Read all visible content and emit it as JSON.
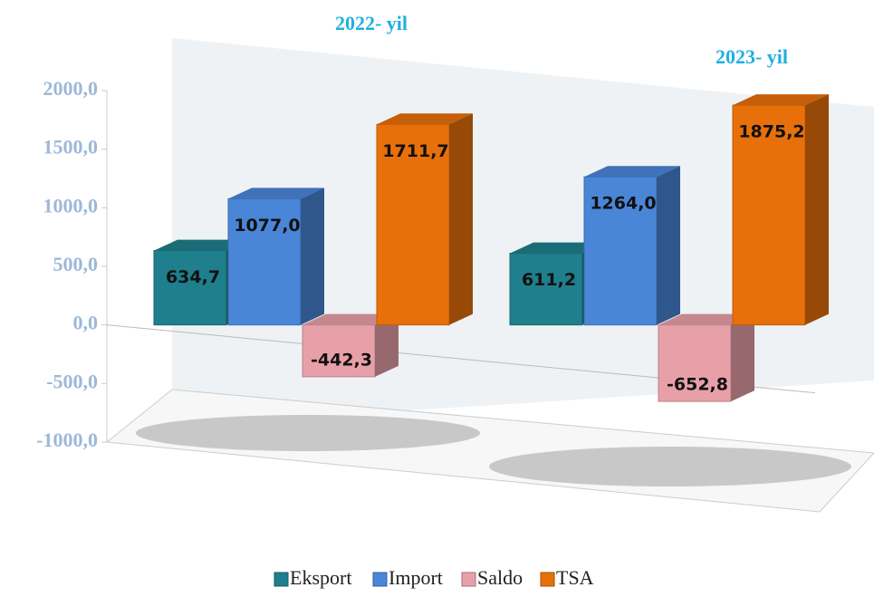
{
  "chart_data": {
    "type": "bar3d",
    "categories": [
      "2022- yil",
      "2023- yil"
    ],
    "series": [
      {
        "name": "Eksport",
        "color": "#1f7f8c",
        "values": [
          634.7,
          611.2
        ],
        "value_labels": [
          "634,7",
          "611,2"
        ]
      },
      {
        "name": "Import",
        "color": "#4a86d8",
        "values": [
          1077.0,
          1264.0
        ],
        "value_labels": [
          "1077,0",
          "1264,0"
        ]
      },
      {
        "name": "Saldo",
        "color": "#e8a0a8",
        "values": [
          -442.3,
          -652.8
        ],
        "value_labels": [
          "-442,3",
          "-652,8"
        ]
      },
      {
        "name": "TSA",
        "color": "#e8700a",
        "values": [
          1711.7,
          1875.2
        ],
        "value_labels": [
          "1711,7",
          "1875,2"
        ]
      }
    ],
    "ylim": [
      -1000,
      2000
    ],
    "yticks": [
      {
        "value": -1000,
        "label": "-1000,0"
      },
      {
        "value": -500,
        "label": "-500,0"
      },
      {
        "value": 0,
        "label": "0,0"
      },
      {
        "value": 500,
        "label": "500,0"
      },
      {
        "value": 1000,
        "label": "1000,0"
      },
      {
        "value": 1500,
        "label": "1500,0"
      },
      {
        "value": 2000,
        "label": "2000,0"
      }
    ],
    "legend": "bottom"
  }
}
